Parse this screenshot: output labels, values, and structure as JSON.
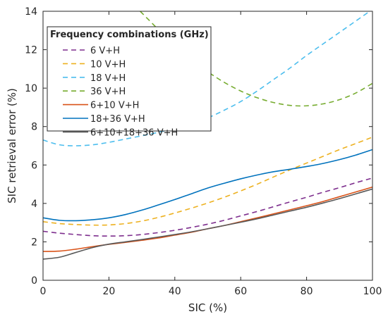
{
  "chart_data": {
    "type": "line",
    "xlabel": "SIC (%)",
    "ylabel": "SIC retrieval error (%)",
    "xlim": [
      0,
      100
    ],
    "ylim": [
      0,
      14
    ],
    "xticks": [
      0,
      20,
      40,
      60,
      80,
      100
    ],
    "yticks": [
      0,
      2,
      4,
      6,
      8,
      10,
      12,
      14
    ],
    "grid": false,
    "legend": {
      "title": "Frequency combinations (GHz)",
      "placement": "top-left"
    },
    "series": [
      {
        "name": "6  V+H",
        "color": "#7E2F8E",
        "style": "dashed",
        "x": [
          0,
          5,
          10,
          15,
          20,
          25,
          30,
          35,
          40,
          45,
          50,
          55,
          60,
          65,
          70,
          75,
          80,
          85,
          90,
          95,
          100
        ],
        "y": [
          2.55,
          2.45,
          2.38,
          2.32,
          2.3,
          2.32,
          2.38,
          2.48,
          2.6,
          2.75,
          2.92,
          3.12,
          3.35,
          3.58,
          3.83,
          4.08,
          4.32,
          4.58,
          4.82,
          5.08,
          5.32
        ]
      },
      {
        "name": "10  V+H",
        "color": "#EDB120",
        "style": "dashed",
        "x": [
          0,
          5,
          10,
          15,
          20,
          25,
          30,
          35,
          40,
          45,
          50,
          55,
          60,
          65,
          70,
          75,
          80,
          85,
          90,
          95,
          100
        ],
        "y": [
          3.05,
          2.95,
          2.9,
          2.87,
          2.88,
          2.95,
          3.08,
          3.27,
          3.5,
          3.75,
          4.02,
          4.32,
          4.65,
          5.0,
          5.38,
          5.75,
          6.1,
          6.45,
          6.8,
          7.12,
          7.45
        ]
      },
      {
        "name": "18  V+H",
        "color": "#4DBEEE",
        "style": "dashed",
        "x": [
          0,
          5,
          10,
          15,
          20,
          25,
          30,
          35,
          40,
          45,
          50,
          55,
          60,
          65,
          70,
          75,
          80,
          85,
          90,
          95,
          100
        ],
        "y": [
          7.3,
          7.05,
          7.0,
          7.05,
          7.18,
          7.35,
          7.52,
          7.7,
          7.9,
          8.15,
          8.45,
          8.85,
          9.3,
          9.85,
          10.45,
          11.05,
          11.7,
          12.3,
          12.9,
          13.5,
          14.1
        ]
      },
      {
        "name": "36  V+H",
        "color": "#77AC30",
        "style": "dashed",
        "x": [
          29.5,
          35,
          40,
          45,
          50,
          55,
          60,
          65,
          70,
          75,
          80,
          85,
          90,
          95,
          100
        ],
        "y": [
          14.0,
          13.05,
          12.2,
          11.45,
          10.85,
          10.3,
          9.85,
          9.5,
          9.25,
          9.1,
          9.08,
          9.18,
          9.4,
          9.75,
          10.25
        ]
      },
      {
        "name": "6+10  V+H",
        "color": "#D95319",
        "style": "solid",
        "x": [
          0,
          5,
          10,
          15,
          20,
          25,
          30,
          35,
          40,
          45,
          50,
          55,
          60,
          65,
          70,
          75,
          80,
          85,
          90,
          95,
          100
        ],
        "y": [
          1.5,
          1.52,
          1.62,
          1.75,
          1.87,
          1.97,
          2.08,
          2.2,
          2.35,
          2.5,
          2.68,
          2.85,
          3.05,
          3.25,
          3.46,
          3.67,
          3.88,
          4.1,
          4.35,
          4.6,
          4.85
        ]
      },
      {
        "name": "18+36  V+H",
        "color": "#0072BD",
        "style": "solid",
        "x": [
          0,
          5,
          10,
          15,
          20,
          25,
          30,
          35,
          40,
          45,
          50,
          55,
          60,
          65,
          70,
          75,
          80,
          85,
          90,
          95,
          100
        ],
        "y": [
          3.25,
          3.12,
          3.1,
          3.15,
          3.25,
          3.42,
          3.65,
          3.92,
          4.2,
          4.5,
          4.8,
          5.05,
          5.28,
          5.48,
          5.65,
          5.78,
          5.92,
          6.08,
          6.28,
          6.52,
          6.8
        ]
      },
      {
        "name": "6+10+18+36  V+H",
        "color": "#595959",
        "style": "solid",
        "x": [
          0,
          5,
          10,
          15,
          20,
          25,
          30,
          35,
          40,
          45,
          50,
          55,
          60,
          65,
          70,
          75,
          80,
          85,
          90,
          95,
          100
        ],
        "y": [
          1.1,
          1.2,
          1.45,
          1.7,
          1.88,
          2.0,
          2.12,
          2.25,
          2.38,
          2.52,
          2.68,
          2.85,
          3.02,
          3.2,
          3.4,
          3.6,
          3.8,
          4.02,
          4.25,
          4.5,
          4.75
        ]
      }
    ]
  }
}
